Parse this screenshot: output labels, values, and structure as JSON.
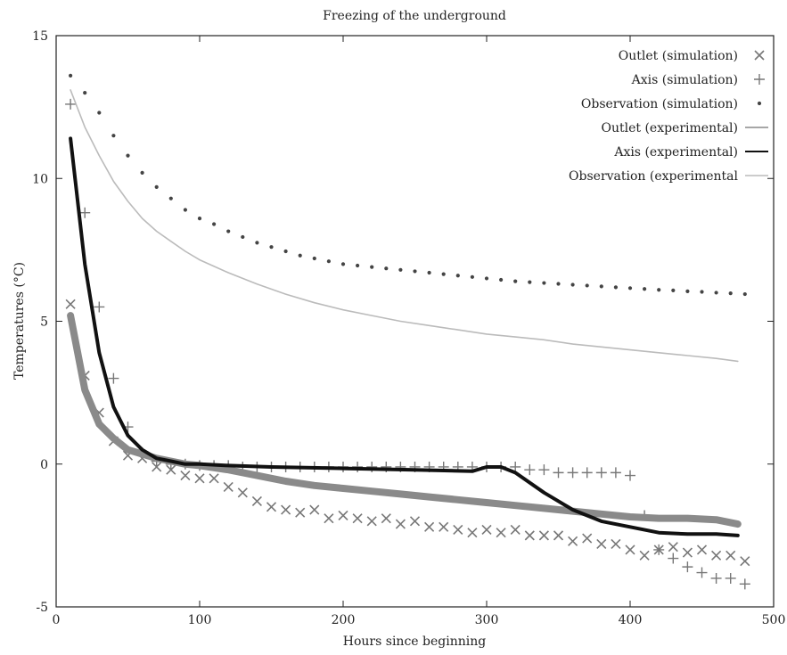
{
  "chart_data": {
    "type": "line",
    "title": "Freezing of the underground",
    "xlabel": "Hours since beginning",
    "ylabel": "Temperatures (°C)",
    "xlim": [
      0,
      500
    ],
    "ylim": [
      -5,
      15
    ],
    "xticks": [
      0,
      100,
      200,
      300,
      400,
      500
    ],
    "yticks": [
      -5,
      0,
      5,
      10,
      15
    ],
    "grid": false,
    "legend_position": "top-right",
    "series": [
      {
        "name": "Outlet (simulation)",
        "style": "markers-x",
        "color": "#777777",
        "x": [
          10,
          20,
          30,
          40,
          50,
          60,
          70,
          80,
          90,
          100,
          110,
          120,
          130,
          140,
          150,
          160,
          170,
          180,
          190,
          200,
          210,
          220,
          230,
          240,
          250,
          260,
          270,
          280,
          290,
          300,
          310,
          320,
          330,
          340,
          350,
          360,
          370,
          380,
          390,
          400,
          410,
          420,
          430,
          440,
          450,
          460,
          470,
          480
        ],
        "y": [
          5.6,
          3.1,
          1.8,
          0.8,
          0.3,
          0.2,
          -0.1,
          -0.2,
          -0.4,
          -0.5,
          -0.5,
          -0.8,
          -1.0,
          -1.3,
          -1.5,
          -1.6,
          -1.7,
          -1.6,
          -1.9,
          -1.8,
          -1.9,
          -2.0,
          -1.9,
          -2.1,
          -2.0,
          -2.2,
          -2.2,
          -2.3,
          -2.4,
          -2.3,
          -2.4,
          -2.3,
          -2.5,
          -2.5,
          -2.5,
          -2.7,
          -2.6,
          -2.8,
          -2.8,
          -3.0,
          -3.2,
          -3.0,
          -2.9,
          -3.1,
          -3.0,
          -3.2,
          -3.2,
          -3.4
        ]
      },
      {
        "name": "Axis (simulation)",
        "style": "markers-plus",
        "color": "#777777",
        "x": [
          10,
          20,
          30,
          40,
          50,
          60,
          70,
          80,
          90,
          100,
          110,
          120,
          130,
          140,
          150,
          160,
          170,
          180,
          190,
          200,
          210,
          220,
          230,
          240,
          250,
          260,
          270,
          280,
          290,
          300,
          310,
          320,
          330,
          340,
          350,
          360,
          370,
          380,
          390,
          400,
          410,
          420,
          430,
          440,
          450,
          460,
          470,
          480
        ],
        "y": [
          12.6,
          8.8,
          5.5,
          3.0,
          1.3,
          0.4,
          0.1,
          0.0,
          0.0,
          -0.05,
          -0.05,
          -0.05,
          -0.1,
          -0.1,
          -0.1,
          -0.1,
          -0.1,
          -0.1,
          -0.1,
          -0.1,
          -0.1,
          -0.1,
          -0.1,
          -0.1,
          -0.1,
          -0.1,
          -0.1,
          -0.1,
          -0.1,
          -0.1,
          -0.1,
          -0.1,
          -0.2,
          -0.2,
          -0.3,
          -0.3,
          -0.3,
          -0.3,
          -0.3,
          -0.4,
          -1.8,
          -3.0,
          -3.3,
          -3.6,
          -3.8,
          -4.0,
          -4.0,
          -4.2
        ]
      },
      {
        "name": "Observation (simulation)",
        "style": "markers-dot",
        "color": "#444444",
        "x": [
          10,
          20,
          30,
          40,
          50,
          60,
          70,
          80,
          90,
          100,
          110,
          120,
          130,
          140,
          150,
          160,
          170,
          180,
          190,
          200,
          210,
          220,
          230,
          240,
          250,
          260,
          270,
          280,
          290,
          300,
          310,
          320,
          330,
          340,
          350,
          360,
          370,
          380,
          390,
          400,
          410,
          420,
          430,
          440,
          450,
          460,
          470,
          480
        ],
        "y": [
          13.6,
          13.0,
          12.3,
          11.5,
          10.8,
          10.2,
          9.7,
          9.3,
          8.9,
          8.6,
          8.4,
          8.15,
          7.95,
          7.75,
          7.6,
          7.45,
          7.3,
          7.2,
          7.1,
          7.0,
          6.95,
          6.9,
          6.85,
          6.8,
          6.75,
          6.7,
          6.65,
          6.6,
          6.55,
          6.5,
          6.45,
          6.4,
          6.37,
          6.34,
          6.31,
          6.28,
          6.25,
          6.22,
          6.19,
          6.16,
          6.13,
          6.1,
          6.08,
          6.05,
          6.03,
          6.0,
          5.98,
          5.95
        ]
      },
      {
        "name": "Outlet (experimental)",
        "style": "line-thick",
        "color": "#8a8a8a",
        "x": [
          10,
          20,
          30,
          40,
          50,
          60,
          70,
          80,
          90,
          100,
          120,
          140,
          160,
          180,
          200,
          220,
          240,
          260,
          280,
          300,
          320,
          340,
          360,
          380,
          400,
          420,
          440,
          460,
          475
        ],
        "y": [
          5.2,
          2.6,
          1.4,
          0.9,
          0.5,
          0.35,
          0.2,
          0.1,
          0.0,
          -0.05,
          -0.2,
          -0.4,
          -0.6,
          -0.75,
          -0.85,
          -0.95,
          -1.05,
          -1.15,
          -1.25,
          -1.35,
          -1.45,
          -1.55,
          -1.65,
          -1.75,
          -1.85,
          -1.9,
          -1.9,
          -1.95,
          -2.1
        ]
      },
      {
        "name": "Axis (experimental)",
        "style": "line-bold",
        "color": "#111111",
        "x": [
          10,
          20,
          30,
          40,
          50,
          60,
          70,
          80,
          90,
          100,
          120,
          150,
          200,
          250,
          290,
          300,
          310,
          320,
          340,
          360,
          380,
          400,
          420,
          440,
          460,
          475
        ],
        "y": [
          11.4,
          7.0,
          3.9,
          2.0,
          1.0,
          0.5,
          0.2,
          0.1,
          0.0,
          0.0,
          -0.05,
          -0.1,
          -0.15,
          -0.2,
          -0.25,
          -0.1,
          -0.1,
          -0.3,
          -1.0,
          -1.6,
          -2.0,
          -2.2,
          -2.4,
          -2.45,
          -2.45,
          -2.5
        ]
      },
      {
        "name": "Observation (experimental",
        "style": "line-thin",
        "color": "#bbbbbb",
        "x": [
          10,
          20,
          30,
          40,
          50,
          60,
          70,
          80,
          90,
          100,
          120,
          140,
          160,
          180,
          200,
          220,
          240,
          260,
          280,
          300,
          320,
          340,
          360,
          380,
          400,
          420,
          440,
          460,
          475
        ],
        "y": [
          13.1,
          11.8,
          10.8,
          9.9,
          9.2,
          8.6,
          8.15,
          7.8,
          7.45,
          7.15,
          6.7,
          6.3,
          5.95,
          5.65,
          5.4,
          5.2,
          5.0,
          4.85,
          4.7,
          4.55,
          4.45,
          4.35,
          4.2,
          4.1,
          4.0,
          3.9,
          3.8,
          3.7,
          3.6
        ]
      }
    ]
  }
}
